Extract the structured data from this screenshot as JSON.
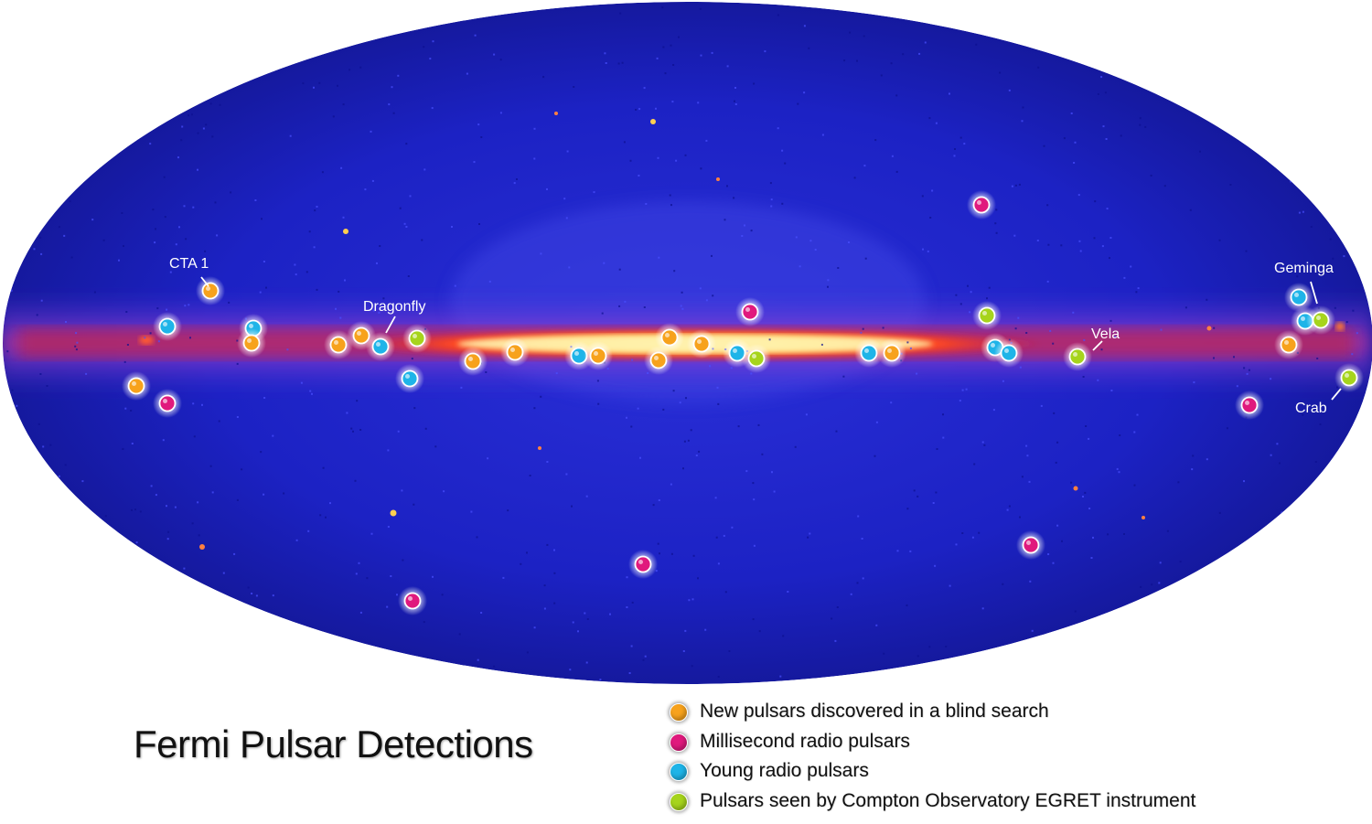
{
  "title": "Fermi Pulsar Detections",
  "colors": {
    "orange": "#f7a21c",
    "magenta": "#e0197d",
    "cyan": "#1eb4e8",
    "green": "#a6d41c",
    "sky_blue": "#1a1fd0",
    "plane_red": "#e8402a",
    "plane_yellow": "#fff2a0"
  },
  "legend": [
    {
      "color": "orange",
      "label": "New pulsars discovered in a blind search"
    },
    {
      "color": "magenta",
      "label": "Millisecond radio pulsars"
    },
    {
      "color": "cyan",
      "label": "Young radio pulsars"
    },
    {
      "color": "green",
      "label": "Pulsars seen by Compton Observatory EGRET instrument"
    }
  ],
  "labels": {
    "cta1": "CTA 1",
    "dragonfly": "Dragonfly",
    "vela": "Vela",
    "geminga": "Geminga",
    "crab": "Crab"
  },
  "map": {
    "projection": "Aitoff/Hammer all-sky",
    "markers": [
      {
        "c": "orange"
      },
      {
        "c": "cyan"
      },
      {
        "c": "cyan"
      },
      {
        "c": "orange"
      },
      {
        "c": "orange"
      },
      {
        "c": "magenta"
      },
      {
        "c": "orange"
      },
      {
        "c": "orange"
      },
      {
        "c": "cyan"
      },
      {
        "c": "green"
      },
      {
        "c": "cyan"
      },
      {
        "c": "orange"
      },
      {
        "c": "orange"
      },
      {
        "c": "cyan"
      },
      {
        "c": "orange"
      },
      {
        "c": "orange"
      },
      {
        "c": "orange"
      },
      {
        "c": "orange"
      },
      {
        "c": "magenta"
      },
      {
        "c": "cyan"
      },
      {
        "c": "green"
      },
      {
        "c": "cyan"
      },
      {
        "c": "orange"
      },
      {
        "c": "magenta"
      },
      {
        "c": "green"
      },
      {
        "c": "cyan"
      },
      {
        "c": "cyan"
      },
      {
        "c": "green"
      },
      {
        "c": "cyan"
      },
      {
        "c": "cyan"
      },
      {
        "c": "green"
      },
      {
        "c": "orange"
      },
      {
        "c": "green"
      },
      {
        "c": "magenta"
      },
      {
        "c": "magenta"
      },
      {
        "c": "magenta"
      },
      {
        "c": "magenta"
      }
    ]
  }
}
